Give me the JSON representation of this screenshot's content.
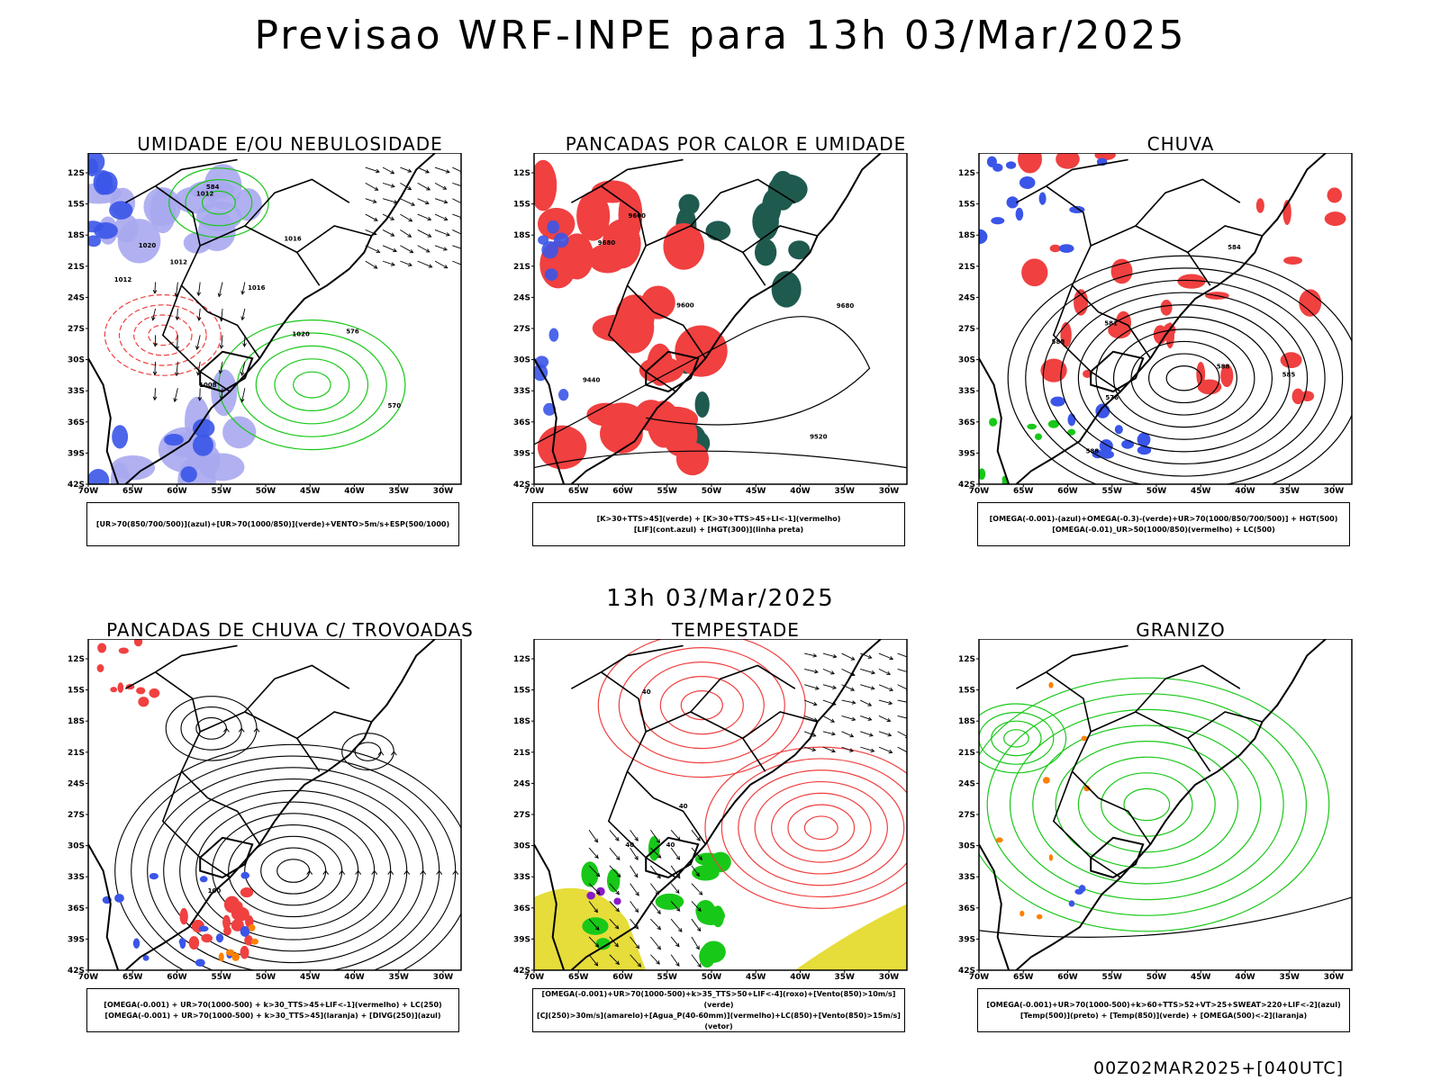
{
  "header": {
    "title": "Previsao WRF-INPE  para 13h 03/Mar/2025",
    "mid_title": "13h 03/Mar/2025",
    "run_label": "00Z02MAR2025+[040UTC]"
  },
  "axes": {
    "lat_labels": [
      "12S",
      "15S",
      "18S",
      "21S",
      "24S",
      "27S",
      "30S",
      "33S",
      "36S",
      "39S",
      "42S"
    ],
    "lon_labels": [
      "70W",
      "65W",
      "60W",
      "55W",
      "50W",
      "45W",
      "40W",
      "35W",
      "30W"
    ]
  },
  "colors": {
    "red": "#f04040",
    "blue": "#3a55e8",
    "lightblue": "#a8a8f0",
    "green": "#18c818",
    "darkgreen": "#1f5a4f",
    "yellow": "#e6dc3a",
    "orange": "#ff8000",
    "purple": "#8a1ac8",
    "black": "#000000"
  },
  "panels": [
    {
      "title": "UMIDADE E/OU NEBULOSIDADE",
      "caption": [
        "[UR>70(850/700/500)](azul)+[UR>70(1000/850)](verde)+VENTO>5m/s+ESP(500/1000)"
      ],
      "labels": [
        "1012",
        "1020",
        "1016",
        "1012",
        "1008",
        "1016",
        "1012",
        "1020",
        "570",
        "576",
        "584"
      ]
    },
    {
      "title": "PANCADAS POR CALOR E UMIDADE",
      "caption": [
        "[K>30+TTS>45](verde) + [K>30+TTS>45+LI<-1](vermelho)",
        "[LIF](cont.azul) + [HGT(300)](linha preta)"
      ],
      "labels": [
        "9600",
        "9680",
        "9600",
        "9520",
        "9440",
        "9680"
      ]
    },
    {
      "title": "CHUVA",
      "caption": [
        "[OMEGA(-0.001)-(azul)+OMEGA(-0.3)-(verde)+UR>70(1000/850/700/500)] + HGT(500)",
        "[OMEGA(-0.01)_UR>50(1000/850)(vermelho) + LC(500)"
      ],
      "labels": [
        "588",
        "588",
        "581",
        "576",
        "585",
        "584",
        "588"
      ]
    },
    {
      "title": "PANCADAS DE CHUVA C/ TROVOADAS",
      "caption": [
        "[OMEGA(-0.001) + UR>70(1000-500) + k>30_TTS>45+LIF<-1](vermelho) + LC(250)",
        "[OMEGA(-0.001) + UR>70(1000-500) + k>30_TTS>45](laranja) + [DIVG(250)](azul)"
      ],
      "labels": [
        "100"
      ]
    },
    {
      "title": "TEMPESTADE",
      "caption": [
        "[OMEGA(-0.001)+UR>70(1000-500)+k>35_TTS>50+LIF<-4](roxo)+[Vento(850)>10m/s](verde)",
        "[CJ(250)>30m/s](amarelo)+[Agua_P(40-60mm)](vermelho)+LC(850)+[Vento(850)>15m/s](vetor)"
      ],
      "labels": [
        "40",
        "40",
        "40",
        "40"
      ]
    },
    {
      "title": "GRANIZO",
      "caption": [
        "[OMEGA(-0.001)+UR>70(1000-500)+k>60+TTS>52+VT>25+SWEAT>220+LIF<-2](azul)",
        "[Temp(500)](preto) + [Temp(850)](verde) + [OMEGA(500)<-2](laranja)"
      ],
      "labels": []
    }
  ]
}
